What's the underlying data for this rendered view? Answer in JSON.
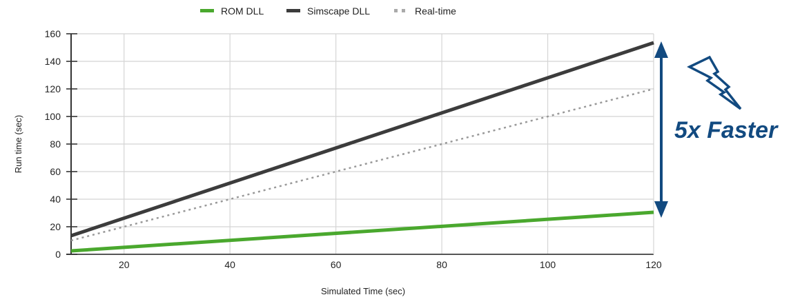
{
  "chart_data": {
    "type": "line",
    "title": "",
    "xlabel": "Simulated Time (sec)",
    "ylabel": "Run time  (sec)",
    "xlim": [
      10,
      120
    ],
    "ylim": [
      0,
      160
    ],
    "x_ticks": [
      20,
      40,
      60,
      80,
      100,
      120
    ],
    "y_ticks": [
      0,
      20,
      40,
      60,
      80,
      100,
      120,
      140,
      160
    ],
    "grid": true,
    "legend_position": "top",
    "x": [
      10,
      120
    ],
    "series": [
      {
        "name": "ROM DLL",
        "values": [
          2.5,
          30.5
        ],
        "color": "#4aa82e",
        "style": "solid"
      },
      {
        "name": "Simscape DLL",
        "values": [
          13.5,
          153.5
        ],
        "color": "#3c3c3c",
        "style": "solid"
      },
      {
        "name": "Real-time",
        "values": [
          10,
          120
        ],
        "color": "#999999",
        "style": "dotted"
      }
    ],
    "annotations": [
      {
        "text": "5x Faster",
        "type": "double-arrow",
        "from_y": 153.5,
        "to_y": 30.5,
        "color": "#124a80"
      },
      {
        "type": "lightning-bolt-icon",
        "color": "#124a80"
      }
    ]
  },
  "legend": [
    {
      "label": "ROM DLL"
    },
    {
      "label": "Simscape DLL"
    },
    {
      "label": "Real-time"
    }
  ],
  "annotation": {
    "label": "5x Faster"
  }
}
